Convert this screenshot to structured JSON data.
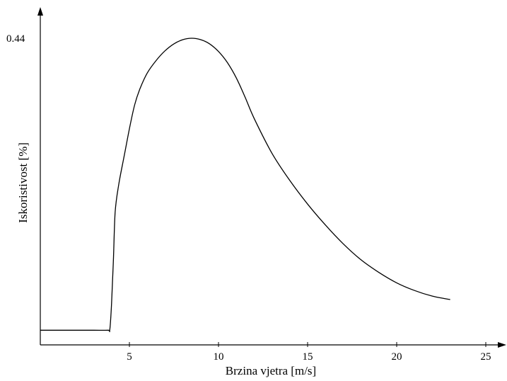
{
  "chart_data": {
    "type": "line",
    "xlabel": "Brzina vjetra [m/s]",
    "ylabel": "Iskoristivost [%]",
    "xlim": [
      0,
      26
    ],
    "ylim": [
      0,
      0.48
    ],
    "x_ticks": [
      5,
      10,
      15,
      20,
      25
    ],
    "y_ticks": [
      0.44
    ],
    "grid": false,
    "series": [
      {
        "x": [
          0,
          1,
          2,
          3,
          3.8,
          3.9,
          4.0,
          4.1,
          4.2,
          4.4,
          4.7,
          5.0,
          5.3,
          5.6,
          6.0,
          6.5,
          7.0,
          7.5,
          8.0,
          8.5,
          9.0,
          9.5,
          10.0,
          10.5,
          11.0,
          11.5,
          12.0,
          13.0,
          14.0,
          15.0,
          16.0,
          17.0,
          18.0,
          19.0,
          20.0,
          21.0,
          22.0,
          23.0
        ],
        "y": [
          0.021,
          0.021,
          0.021,
          0.021,
          0.021,
          0.022,
          0.06,
          0.12,
          0.19,
          0.23,
          0.27,
          0.31,
          0.345,
          0.368,
          0.39,
          0.408,
          0.422,
          0.432,
          0.438,
          0.44,
          0.438,
          0.432,
          0.421,
          0.405,
          0.383,
          0.355,
          0.325,
          0.275,
          0.236,
          0.202,
          0.172,
          0.145,
          0.122,
          0.104,
          0.089,
          0.078,
          0.07,
          0.065
        ]
      }
    ]
  }
}
